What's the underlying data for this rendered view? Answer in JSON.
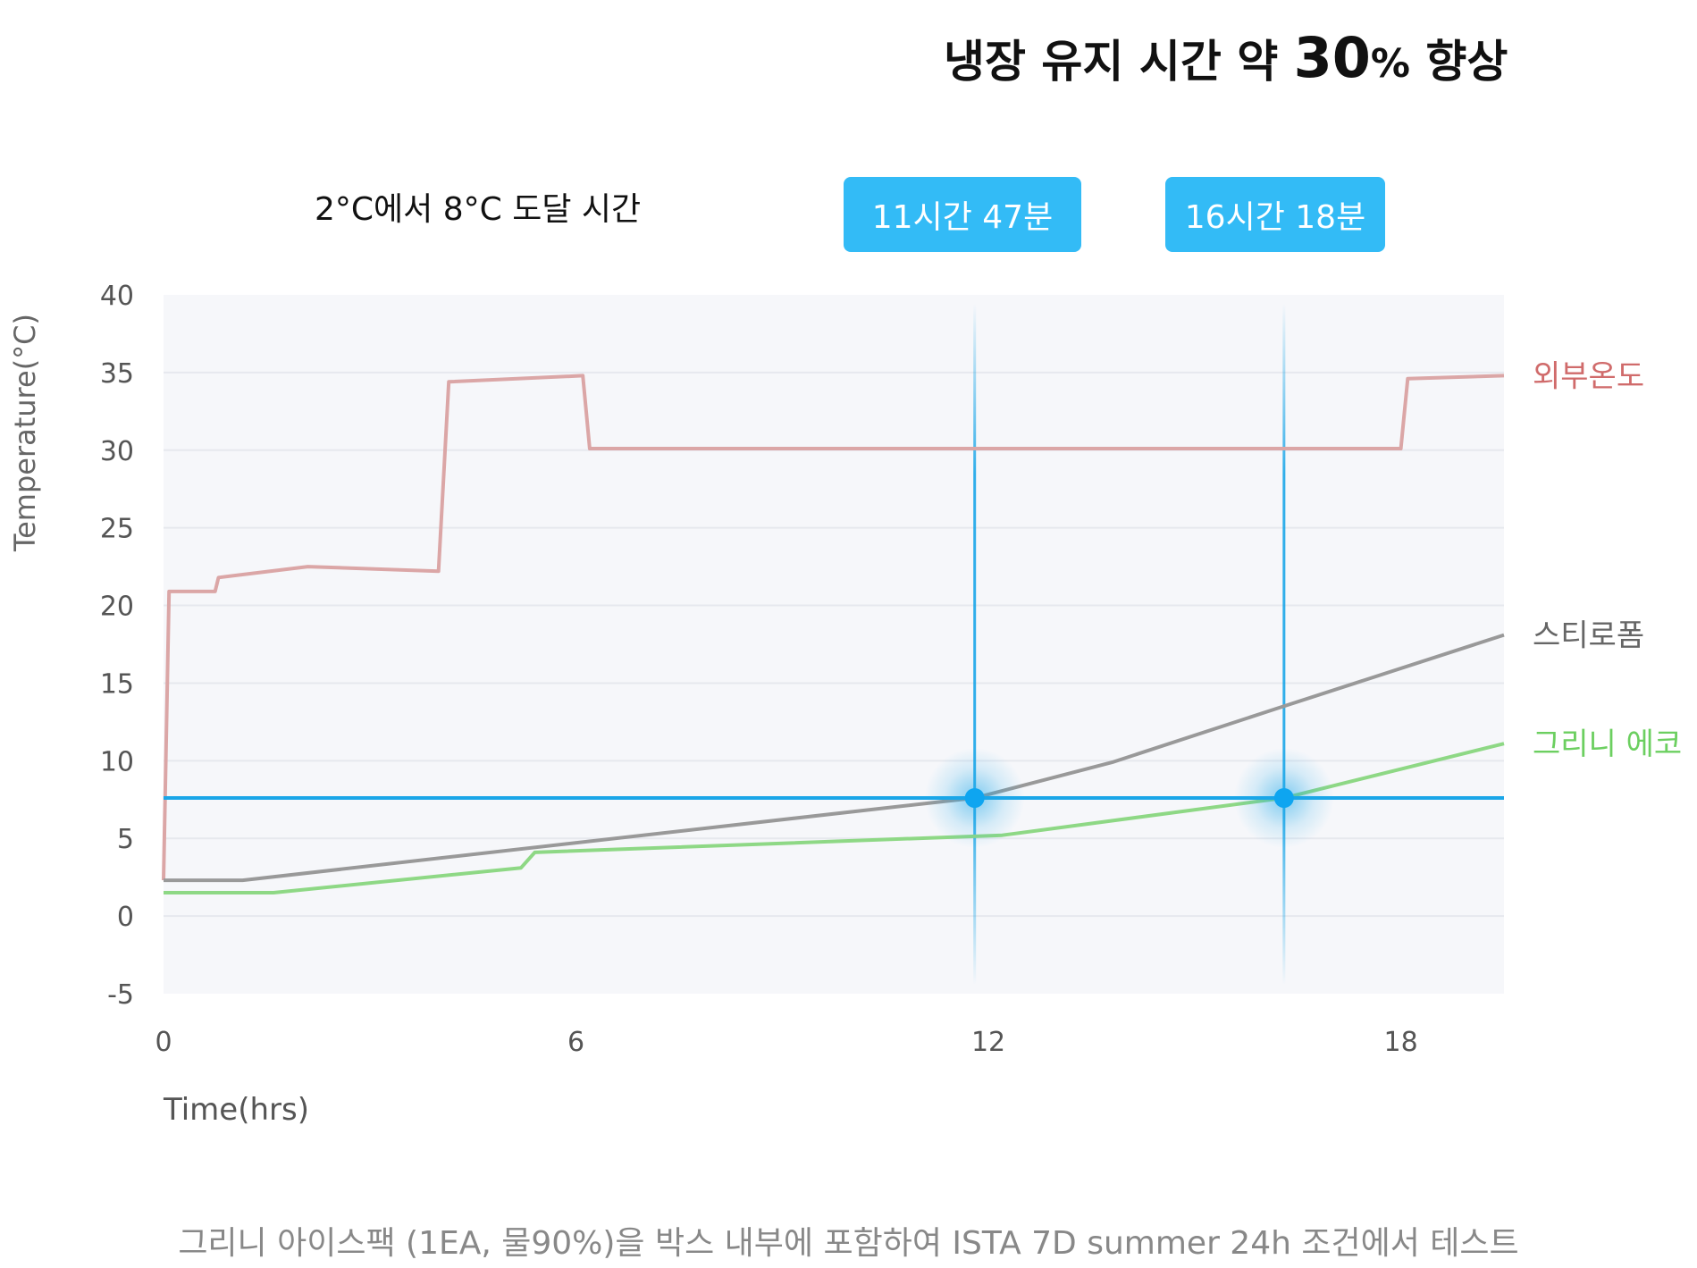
{
  "header": {
    "headline_prefix": "냉장 유지 시간 약 ",
    "headline_number": "30",
    "headline_unit": "%",
    "headline_suffix": " 향상"
  },
  "reach_time": {
    "label": "2°C에서 8°C 도달 시간",
    "badges": [
      "11시간 47분",
      "16시간 18분"
    ]
  },
  "footnote": "그리니 아이스팩 (1EA, 물90%)을 박스 내부에 포함하여 ISTA 7D summer 24h 조건에서 테스트",
  "colors": {
    "outside": "#dba6a6",
    "outside_label": "#d06b6b",
    "styrofoam": "#999999",
    "styrofoam_label": "#666666",
    "greeny": "#8ed885",
    "greeny_label": "#6ccf60",
    "threshold": "#1aa6e8",
    "badge": "#33bbf6",
    "plot_bg": "#f6f7fa",
    "grid": "#e6e8ee"
  },
  "chart_data": {
    "type": "line",
    "xlabel": "Time(hrs)",
    "ylabel": "Temperature(°C)",
    "xlim": [
      0,
      19.5
    ],
    "ylim": [
      -5,
      40
    ],
    "xticks": [
      0,
      6,
      12,
      18
    ],
    "yticks": [
      -5,
      0,
      5,
      10,
      15,
      20,
      25,
      30,
      35,
      40
    ],
    "grid": true,
    "threshold_y": 7.6,
    "series": [
      {
        "name": "외부온도",
        "color_key": "outside",
        "points": [
          [
            0,
            2.3
          ],
          [
            0.08,
            20.9
          ],
          [
            0.75,
            20.9
          ],
          [
            0.8,
            21.8
          ],
          [
            2.1,
            22.5
          ],
          [
            4.0,
            22.2
          ],
          [
            4.15,
            34.4
          ],
          [
            6.1,
            34.8
          ],
          [
            6.2,
            30.1
          ],
          [
            18.0,
            30.1
          ],
          [
            18.1,
            34.6
          ],
          [
            19.5,
            34.8
          ]
        ]
      },
      {
        "name": "스티로폼",
        "color_key": "styrofoam",
        "points": [
          [
            0,
            2.3
          ],
          [
            1.15,
            2.3
          ],
          [
            11.8,
            7.6
          ],
          [
            13.8,
            9.9
          ],
          [
            16.15,
            13.3
          ],
          [
            19.5,
            18.1
          ]
        ]
      },
      {
        "name": "그리니 에코",
        "color_key": "greeny",
        "points": [
          [
            0,
            1.5
          ],
          [
            1.6,
            1.5
          ],
          [
            5.2,
            3.1
          ],
          [
            5.4,
            4.1
          ],
          [
            12.2,
            5.2
          ],
          [
            16.3,
            7.6
          ],
          [
            19.5,
            11.1
          ]
        ]
      }
    ],
    "markers": [
      {
        "x": 11.8,
        "y": 7.6
      },
      {
        "x": 16.3,
        "y": 7.6
      }
    ]
  }
}
